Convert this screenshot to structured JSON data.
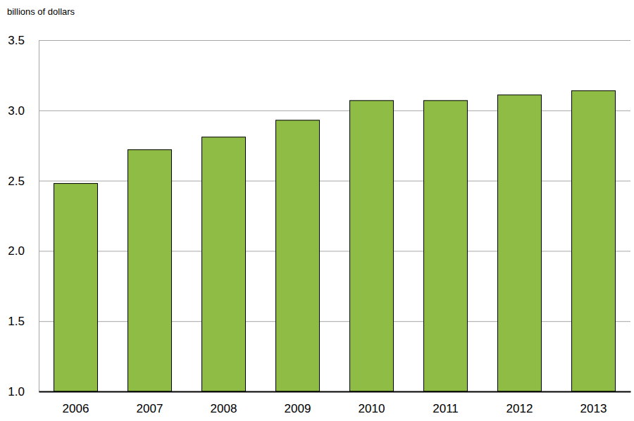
{
  "chart_data": {
    "type": "bar",
    "y_label": "billions of dollars",
    "categories": [
      "2006",
      "2007",
      "2008",
      "2009",
      "2010",
      "2011",
      "2012",
      "2013"
    ],
    "values": [
      2.48,
      2.72,
      2.81,
      2.93,
      3.07,
      3.07,
      3.11,
      3.14
    ],
    "color": "#8fbc45",
    "ylim": [
      1.0,
      3.5
    ],
    "yticks": [
      {
        "value": 1.0,
        "label": "1.0"
      },
      1.5,
      {
        "value": 2.0,
        "label": "2.0"
      },
      2.5,
      {
        "value": 3.0,
        "label": "3.0"
      },
      3.5
    ],
    "grid": true
  }
}
